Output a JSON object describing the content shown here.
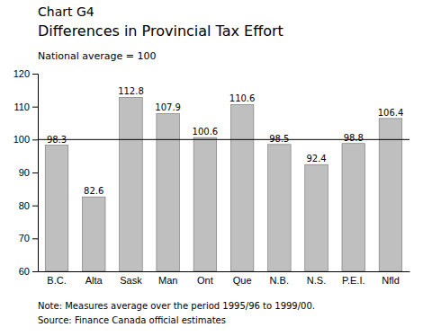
{
  "chart_data": {
    "type": "bar",
    "title": "Chart G4",
    "subtitle": "Differences in Provincial Tax Effort",
    "annotations": [
      "National average = 100",
      "Note: Measures average over the period 1995/96 to 1999/00.",
      "Source: Finance Canada official estimates"
    ],
    "categories": [
      "B.C.",
      "Alta",
      "Sask",
      "Man",
      "Ont",
      "Que",
      "N.B.",
      "N.S.",
      "P.E.I.",
      "Nfld"
    ],
    "values": [
      98.3,
      82.6,
      112.8,
      107.9,
      100.6,
      110.6,
      98.5,
      92.4,
      98.8,
      106.4
    ],
    "color": "#c0bfbf",
    "reference_line": 100,
    "ylim": [
      60,
      120
    ],
    "yticks": [
      60,
      70,
      80,
      90,
      100,
      110,
      120
    ],
    "grid": false,
    "data_labels": true
  }
}
